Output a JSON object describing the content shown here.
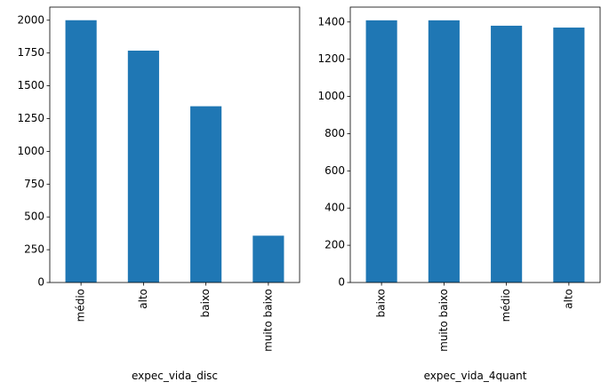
{
  "chart_data": [
    {
      "type": "bar",
      "xlabel": "expec_vida_disc",
      "ylabel": "",
      "categories": [
        "médio",
        "alto",
        "baixo",
        "muito baixo"
      ],
      "values": [
        2000,
        1768,
        1344,
        357
      ],
      "ylim": [
        0,
        2100
      ],
      "yticks": [
        0,
        250,
        500,
        750,
        1000,
        1250,
        1500,
        1750,
        2000
      ],
      "bar_color": "#1f77b4",
      "grid": false,
      "legend": "none"
    },
    {
      "type": "bar",
      "xlabel": "expec_vida_4quant",
      "ylabel": "",
      "categories": [
        "baixo",
        "muito baixo",
        "médio",
        "alto"
      ],
      "values": [
        1409,
        1409,
        1380,
        1370
      ],
      "ylim": [
        0,
        1480
      ],
      "yticks": [
        0,
        200,
        400,
        600,
        800,
        1000,
        1200,
        1400
      ],
      "bar_color": "#1f77b4",
      "grid": false,
      "legend": "none"
    }
  ]
}
